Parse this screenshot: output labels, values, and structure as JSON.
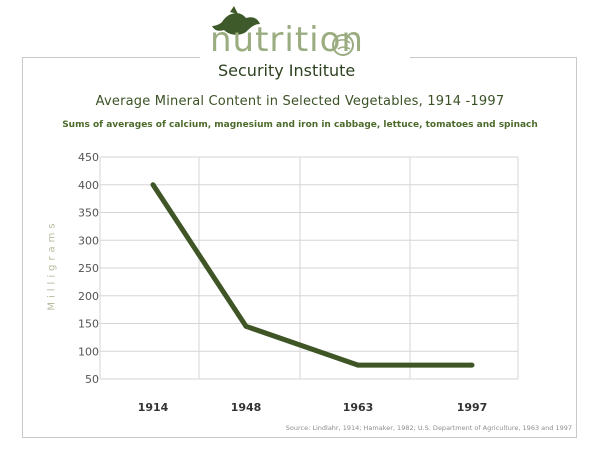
{
  "logo": {
    "word": "nutrition",
    "subtitle": "Security Institute"
  },
  "chart_data": {
    "type": "line",
    "title": "Average Mineral Content in Selected Vegetables, 1914 -1997",
    "subtitle": "Sums of averages of calcium, magnesium and iron in cabbage, lettuce, tomatoes and spinach",
    "ylabel": "Milligrams",
    "xlabel": "",
    "categories": [
      "1914",
      "1948",
      "1963",
      "1997"
    ],
    "values": [
      400,
      145,
      75,
      75
    ],
    "yticks": [
      450,
      400,
      350,
      300,
      250,
      200,
      150,
      100,
      50
    ],
    "ylim": [
      50,
      450
    ],
    "grid": true,
    "line_color": "#3f5525",
    "source": "Source: Lindlahr, 1914; Hamaker, 1982; U.S. Department of Agriculture, 1963 and 1997"
  }
}
